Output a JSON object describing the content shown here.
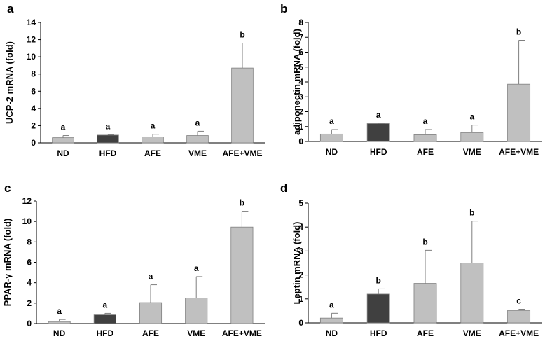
{
  "chart_data": [
    {
      "panel": "a",
      "type": "bar",
      "ylabel": "UCP-2 mRNA (fold)",
      "categories": [
        "ND",
        "HFD",
        "AFE",
        "VME",
        "AFE+VME"
      ],
      "values": [
        0.6,
        0.9,
        0.7,
        0.85,
        8.7
      ],
      "errors": [
        0.25,
        0.05,
        0.3,
        0.5,
        2.9
      ],
      "significance": [
        "a",
        "a",
        "a",
        "a",
        "b"
      ],
      "ylim": [
        0,
        14
      ],
      "yticks": [
        0,
        2,
        4,
        6,
        8,
        10,
        12,
        14
      ],
      "colors": [
        "#c0c0c0",
        "#404040",
        "#c0c0c0",
        "#c0c0c0",
        "#c0c0c0"
      ]
    },
    {
      "panel": "b",
      "type": "bar",
      "ylabel": "adiponectin mRNA (fold)",
      "categories": [
        "ND",
        "HFD",
        "AFE",
        "VME",
        "AFE+VME"
      ],
      "values": [
        0.5,
        1.2,
        0.45,
        0.6,
        3.85
      ],
      "errors": [
        0.3,
        0.03,
        0.35,
        0.5,
        2.95
      ],
      "significance": [
        "a",
        "a",
        "a",
        "a",
        "b"
      ],
      "ylim": [
        0,
        8
      ],
      "yticks": [
        0,
        1,
        2,
        3,
        4,
        5,
        6,
        7,
        8
      ],
      "colors": [
        "#c0c0c0",
        "#404040",
        "#c0c0c0",
        "#c0c0c0",
        "#c0c0c0"
      ]
    },
    {
      "panel": "c",
      "type": "bar",
      "ylabel": "PPAR-γ mRNA (fold)",
      "categories": [
        "ND",
        "HFD",
        "AFE",
        "VME",
        "AFE+VME"
      ],
      "values": [
        0.2,
        0.85,
        2.05,
        2.5,
        9.45
      ],
      "errors": [
        0.2,
        0.15,
        1.75,
        2.1,
        1.55
      ],
      "significance": [
        "a",
        "a",
        "a",
        "a",
        "b"
      ],
      "ylim": [
        0,
        12
      ],
      "yticks": [
        0,
        2,
        4,
        6,
        8,
        10,
        12
      ],
      "colors": [
        "#c0c0c0",
        "#404040",
        "#c0c0c0",
        "#c0c0c0",
        "#c0c0c0"
      ]
    },
    {
      "panel": "d",
      "type": "bar",
      "ylabel": "Leptin mRNA (fold)",
      "categories": [
        "ND",
        "HFD",
        "AFE",
        "VME",
        "AFE+VME"
      ],
      "values": [
        0.2,
        1.2,
        1.65,
        2.5,
        0.52
      ],
      "errors": [
        0.2,
        0.22,
        1.38,
        1.75,
        0.05
      ],
      "significance": [
        "a",
        "b",
        "b",
        "b",
        "c"
      ],
      "ylim": [
        0,
        5
      ],
      "yticks": [
        0,
        1,
        2,
        3,
        4,
        5
      ],
      "colors": [
        "#c0c0c0",
        "#404040",
        "#c0c0c0",
        "#c0c0c0",
        "#c0c0c0"
      ]
    }
  ]
}
